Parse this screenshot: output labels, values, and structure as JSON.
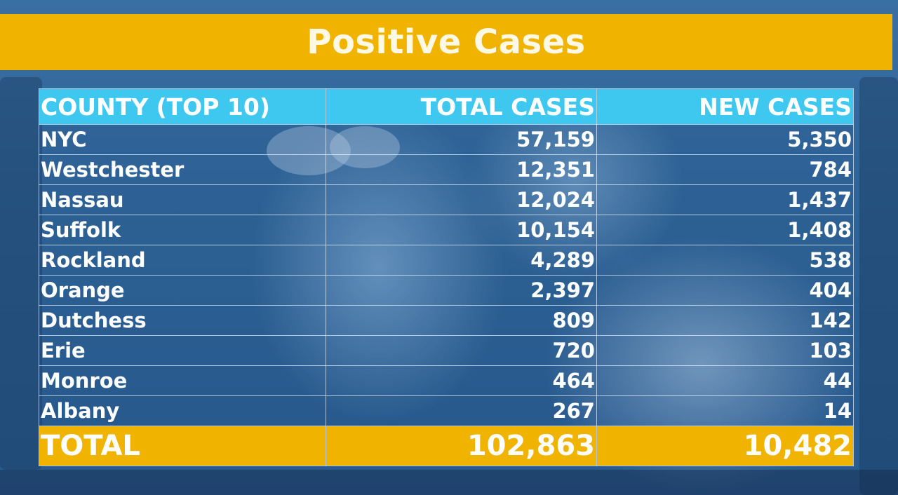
{
  "title": "Positive Cases",
  "table": {
    "headers": [
      "COUNTY (TOP 10)",
      "TOTAL CASES",
      "NEW CASES"
    ],
    "rows": [
      {
        "county": "NYC",
        "total": "57,159",
        "new": "5,350"
      },
      {
        "county": "Westchester",
        "total": "12,351",
        "new": "784"
      },
      {
        "county": "Nassau",
        "total": "12,024",
        "new": "1,437"
      },
      {
        "county": "Suffolk",
        "total": "10,154",
        "new": "1,408"
      },
      {
        "county": "Rockland",
        "total": "4,289",
        "new": "538"
      },
      {
        "county": "Orange",
        "total": "2,397",
        "new": "404"
      },
      {
        "county": "Dutchess",
        "total": "809",
        "new": "142"
      },
      {
        "county": "Erie",
        "total": "720",
        "new": "103"
      },
      {
        "county": "Monroe",
        "total": "464",
        "new": "44"
      },
      {
        "county": "Albany",
        "total": "267",
        "new": "14"
      }
    ],
    "total": {
      "label": "TOTAL",
      "total": "102,863",
      "new": "10,482"
    }
  },
  "colors": {
    "title_bar": "#f0b400",
    "header_row": "#3ec8f0",
    "total_row": "#f0b400"
  }
}
